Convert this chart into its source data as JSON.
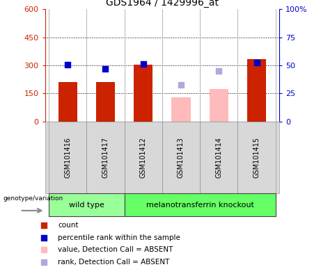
{
  "title": "GDS1964 / 1429996_at",
  "samples": [
    "GSM101416",
    "GSM101417",
    "GSM101412",
    "GSM101413",
    "GSM101414",
    "GSM101415"
  ],
  "genotype_labels": [
    "wild type",
    "melanotransferrin knockout"
  ],
  "left_yticks": [
    0,
    150,
    300,
    450,
    600
  ],
  "left_ylim": [
    0,
    600
  ],
  "right_yticks": [
    0,
    25,
    50,
    75,
    100
  ],
  "right_ylim": [
    0,
    100
  ],
  "bar_counts": [
    210,
    210,
    305,
    null,
    null,
    335
  ],
  "bar_counts_absent": [
    null,
    null,
    null,
    130,
    175,
    null
  ],
  "percentile_ranks": [
    305,
    280,
    307,
    null,
    null,
    315
  ],
  "percentile_ranks_absent": [
    null,
    null,
    null,
    195,
    270,
    null
  ],
  "bar_color_present": "#cc2200",
  "bar_color_absent": "#ffbbbb",
  "dot_color_present": "#0000cc",
  "dot_color_absent": "#aaaadd",
  "genotype_wt_color": "#99ff99",
  "genotype_ko_color": "#66ff66",
  "left_tick_color": "#cc2200",
  "right_tick_color": "#0000cc",
  "bar_width": 0.5,
  "dot_size": 40,
  "legend_items": [
    {
      "color": "#cc2200",
      "label": "count"
    },
    {
      "color": "#0000cc",
      "label": "percentile rank within the sample"
    },
    {
      "color": "#ffbbbb",
      "label": "value, Detection Call = ABSENT"
    },
    {
      "color": "#aaaadd",
      "label": "rank, Detection Call = ABSENT"
    }
  ]
}
